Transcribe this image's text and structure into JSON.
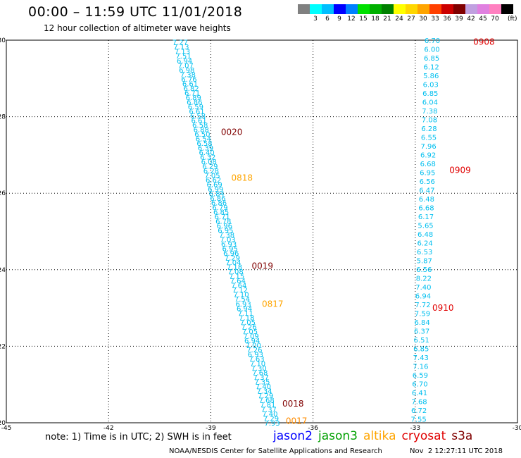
{
  "header": {
    "title": "00:00 – 11:59 UTC 11/01/2018",
    "subtitle": "12 hour collection of altimeter wave heights"
  },
  "colorbar": {
    "colors": [
      "#808080",
      "#00ffff",
      "#00bfff",
      "#0000ff",
      "#0080ff",
      "#00e000",
      "#00b000",
      "#008000",
      "#ffff00",
      "#ffd700",
      "#ffa500",
      "#ff4000",
      "#cc0000",
      "#800000",
      "#c0a0e0",
      "#e080e0",
      "#ff80c0",
      "#000000"
    ],
    "labels": [
      "3",
      "6",
      "9",
      "12",
      "15",
      "18",
      "21",
      "24",
      "27",
      "30",
      "33",
      "36",
      "39",
      "42",
      "45",
      "70"
    ],
    "unit": "(ft)"
  },
  "chart_data": {
    "type": "scatter",
    "title": "00:00 – 11:59 UTC 11/01/2018",
    "subtitle": "12 hour collection of altimeter wave heights",
    "xlim": [
      -45,
      -30
    ],
    "ylim": [
      20,
      30
    ],
    "xticks": [
      "-45",
      "-42",
      "-39",
      "-36",
      "-33",
      "-30"
    ],
    "yticks": [
      "20",
      "22",
      "24",
      "26",
      "28",
      "30"
    ],
    "grid": true,
    "tracks": [
      {
        "satellite": "jason2",
        "color": "#00bfef",
        "x_start": -39.9,
        "y_start": 29.95,
        "x_end": -37.2,
        "y_end": 20.0,
        "values": [
          "7.27",
          "7.13",
          "7.13",
          "7.51",
          "6.94",
          "7.07",
          "6.98",
          "7.38",
          "6.76",
          "6.61",
          "6.82",
          "6.71",
          "6.89",
          "6.86",
          "6.59",
          "6.61",
          "6.58",
          "6.61",
          "6.58",
          "6.88",
          "6.50",
          "6.54",
          "6.58",
          "6.39",
          "6.40",
          "6.32",
          "6.08",
          "6.29",
          "6.28",
          "7.05",
          "6.62",
          "6.69",
          "6.99",
          "6.84",
          "6.86",
          "6.86",
          "6.79",
          "6.85",
          "6.71",
          "6.78",
          "6.96",
          "6.95",
          "7.38",
          "7.03",
          "6.93",
          "6.95",
          "6.96",
          "7.29",
          "7.04",
          "7.18",
          "7.08",
          "7.15",
          "7.64",
          "7.64",
          "7.12",
          "7.10",
          "7.54",
          "6.93",
          "6.94",
          "7.11",
          "7.18",
          "7.05",
          "7.26",
          "7.05",
          "7.09",
          "6.94",
          "7.00",
          "7.26",
          "6.93",
          "7.63",
          "7.10",
          "7.30",
          "7.68",
          "7.37",
          "7.35",
          "7.40",
          "7.34",
          "7.29",
          "7.68",
          "7.81",
          "7.37",
          "7.40",
          "7.29",
          "7.93"
        ]
      },
      {
        "satellite": "cryosat",
        "color": "#00bfef",
        "x_start": -32.5,
        "y_start": 30.0,
        "x_end": -32.9,
        "y_end": 20.1,
        "values": [
          "6.70",
          "6.00",
          "6.85",
          "6.12",
          "5.86",
          "6.03",
          "6.85",
          "6.04",
          "7.38",
          "7.08",
          "6.28",
          "6.55",
          "7.96",
          "6.92",
          "6.68",
          "6.95",
          "6.56",
          "6.47",
          "6.48",
          "6.68",
          "6.17",
          "5.65",
          "6.48",
          "6.24",
          "6.53",
          "5.87",
          "6.56",
          "8.22",
          "7.40",
          "6.94",
          "7.72",
          "7.59",
          "6.84",
          "6.37",
          "6.51",
          "6.85",
          "7.43",
          "7.16",
          "6.59",
          "6.70",
          "6.41",
          "7.68",
          "6.72",
          "7.55"
        ]
      }
    ],
    "pass_labels": [
      {
        "text": "0908",
        "x": -31.3,
        "y": 29.95,
        "color": "#e00000"
      },
      {
        "text": "0020",
        "x": -38.7,
        "y": 27.6,
        "color": "#800000"
      },
      {
        "text": "0818",
        "x": -38.4,
        "y": 26.4,
        "color": "#ffa500"
      },
      {
        "text": "0909",
        "x": -32.0,
        "y": 26.6,
        "color": "#e00000"
      },
      {
        "text": "0019",
        "x": -37.8,
        "y": 24.1,
        "color": "#800000"
      },
      {
        "text": "0817",
        "x": -37.5,
        "y": 23.1,
        "color": "#ffa500"
      },
      {
        "text": "0910",
        "x": -32.5,
        "y": 23.0,
        "color": "#e00000"
      },
      {
        "text": "0018",
        "x": -36.9,
        "y": 20.5,
        "color": "#800000"
      },
      {
        "text": "0017",
        "x": -36.8,
        "y": 20.05,
        "color": "#ff8c00"
      }
    ]
  },
  "footer": {
    "note": "note: 1) Time is in UTC; 2) SWH is in feet",
    "legend": [
      {
        "name": "jason2",
        "color": "#0000ff"
      },
      {
        "name": "jason3",
        "color": "#00a000"
      },
      {
        "name": "altika",
        "color": "#ffa500"
      },
      {
        "name": "cryosat",
        "color": "#e00000"
      },
      {
        "name": "s3a",
        "color": "#800000"
      }
    ],
    "credit": "NOAA/NESDIS Center for Satellite Applications and Research",
    "timestamp": "Nov  2 12:27:11 UTC 2018"
  }
}
